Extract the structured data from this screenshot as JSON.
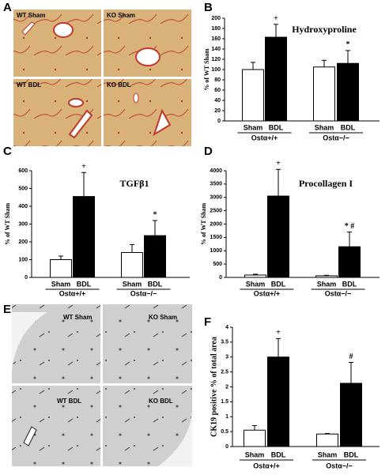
{
  "panel_labels": [
    "A",
    "B",
    "C",
    "D",
    "E",
    "F"
  ],
  "image_panels": [
    {
      "labels": [
        "WT Sham",
        "KO Sham",
        "WT BDL",
        "KO BDL"
      ]
    },
    {
      "labels": [
        "WT Sham",
        "KO Sham",
        "WT BDL",
        "KO BDL"
      ]
    }
  ],
  "chart_data": [
    {
      "type": "bar",
      "title": "Hydroxyproline",
      "ylabel": "% of WT Sham",
      "categories": [
        "Ostα+/+",
        "Ostα−/−"
      ],
      "series": [
        {
          "name": "Sham",
          "color": "#ffffff",
          "values": [
            100,
            105
          ],
          "errors": [
            14,
            13
          ],
          "markers": [
            null,
            null
          ]
        },
        {
          "name": "BDL",
          "color": "#000000",
          "values": [
            163,
            112
          ],
          "errors": [
            25,
            25
          ],
          "markers": [
            "+",
            "*"
          ]
        }
      ],
      "ylim": [
        0,
        200
      ],
      "yticks": [
        0,
        20,
        40,
        60,
        80,
        100,
        120,
        140,
        160,
        180,
        200
      ]
    },
    {
      "type": "bar",
      "title": "TGFβ1",
      "ylabel": "% of WT Sham",
      "categories": [
        "Ostα+/+",
        "Ostα−/−"
      ],
      "series": [
        {
          "name": "Sham",
          "color": "#ffffff",
          "values": [
            100,
            140
          ],
          "errors": [
            20,
            45
          ],
          "markers": [
            null,
            null
          ]
        },
        {
          "name": "BDL",
          "color": "#000000",
          "values": [
            455,
            235
          ],
          "errors": [
            135,
            85
          ],
          "markers": [
            "+",
            "*"
          ]
        }
      ],
      "ylim": [
        0,
        600
      ],
      "yticks": [
        0,
        100,
        200,
        300,
        400,
        500,
        600
      ]
    },
    {
      "type": "bar",
      "title": "Procollagen I",
      "ylabel": "% of WT Sham",
      "categories": [
        "Ostα+/+",
        "Ostα−/−"
      ],
      "series": [
        {
          "name": "Sham",
          "color": "#ffffff",
          "values": [
            90,
            60
          ],
          "errors": [
            30,
            20
          ],
          "markers": [
            null,
            null
          ]
        },
        {
          "name": "BDL",
          "color": "#000000",
          "values": [
            3050,
            1150
          ],
          "errors": [
            1000,
            550
          ],
          "markers": [
            "+",
            "* #"
          ]
        }
      ],
      "ylim": [
        0,
        4000
      ],
      "yticks": [
        0,
        500,
        1000,
        1500,
        2000,
        2500,
        3000,
        3500,
        4000
      ]
    },
    {
      "type": "bar",
      "ylabel": "CK19 positive % of total area",
      "categories": [
        "Ostα+/+",
        "Ostα−/−"
      ],
      "series": [
        {
          "name": "Sham",
          "color": "#ffffff",
          "values": [
            0.55,
            0.42
          ],
          "errors": [
            0.15,
            0.02
          ],
          "markers": [
            null,
            null
          ]
        },
        {
          "name": "BDL",
          "color": "#000000",
          "values": [
            3.0,
            2.12
          ],
          "errors": [
            0.62,
            0.7
          ],
          "markers": [
            "+",
            "#"
          ]
        }
      ],
      "ylim": [
        0,
        4
      ],
      "yticks": [
        0,
        0.5,
        1,
        1.5,
        2,
        2.5,
        3,
        3.5,
        4
      ]
    }
  ]
}
